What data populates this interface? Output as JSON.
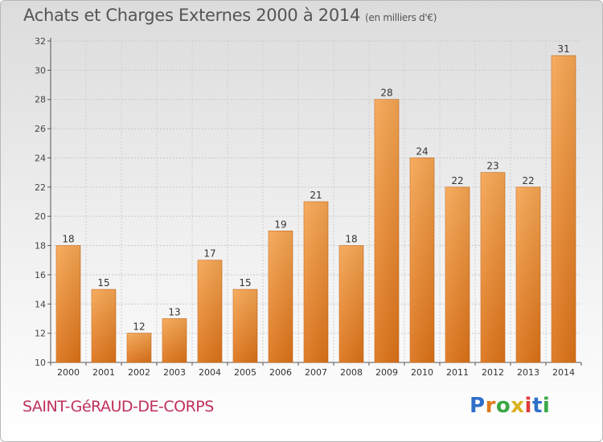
{
  "header": {
    "title": "Achats et Charges Externes 2000 à 2014",
    "subtitle": "(en milliers d'€)"
  },
  "footer": {
    "commune": "SAINT-GéRAUD-DE-CORPS",
    "brand": {
      "letters": [
        "P",
        "r",
        "o",
        "x",
        "i",
        "t",
        "i"
      ],
      "colors": [
        "#2f6fc9",
        "#e07a1e",
        "#3aa845",
        "#d9b21c",
        "#e03a3a",
        "#2f6fc9",
        "#3aa845"
      ]
    }
  },
  "chart_data": {
    "type": "bar",
    "title": "Achats et Charges Externes 2000 à 2014",
    "subtitle": "(en milliers d'€)",
    "categories": [
      "2000",
      "2001",
      "2002",
      "2003",
      "2004",
      "2005",
      "2006",
      "2007",
      "2008",
      "2009",
      "2010",
      "2011",
      "2012",
      "2013",
      "2014"
    ],
    "values": [
      18,
      15,
      12,
      13,
      17,
      15,
      19,
      21,
      18,
      28,
      24,
      22,
      23,
      22,
      31
    ],
    "ylim": [
      10,
      32
    ],
    "yticks": [
      10,
      12,
      14,
      16,
      18,
      20,
      22,
      24,
      26,
      28,
      30,
      32
    ],
    "grid": true,
    "bar_color": "#f0913a",
    "bar_color_dark": "#d86f16"
  }
}
